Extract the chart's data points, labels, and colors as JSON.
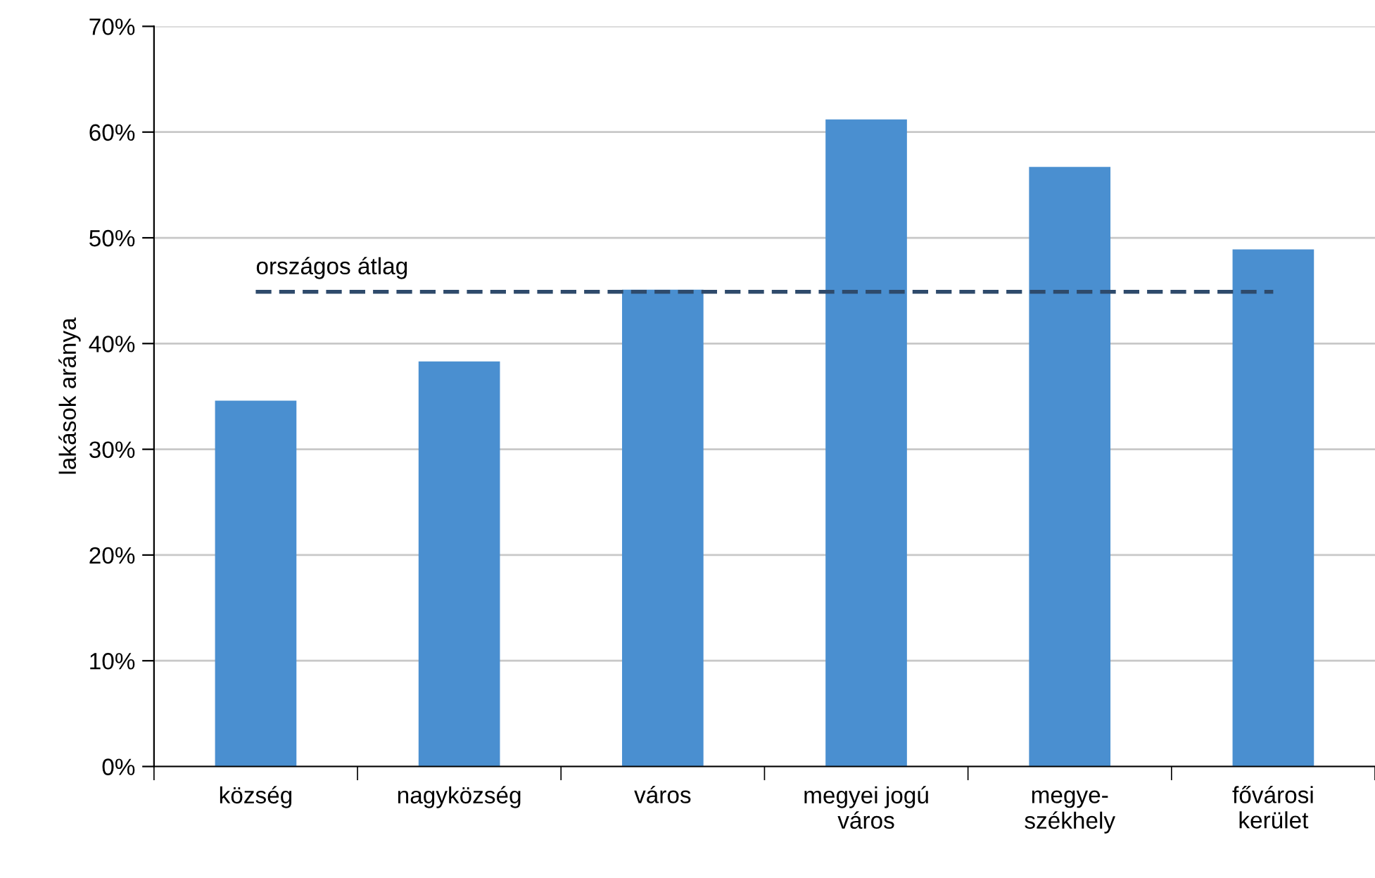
{
  "chart_data": {
    "type": "bar",
    "ylabel": "lakások aránya",
    "categories": [
      "község",
      "nagyközség",
      "város",
      "megyei jogú\nváros",
      "megye-\nszékhely",
      "fővárosi\nkerület"
    ],
    "values": [
      34.6,
      38.3,
      45.1,
      61.2,
      56.7,
      48.9
    ],
    "color": "#4a8fd0",
    "ylim": [
      0,
      70
    ],
    "yticks": [
      {
        "value": 0,
        "label": "0%"
      },
      {
        "value": 10,
        "label": "10%"
      },
      {
        "value": 20,
        "label": "20%"
      },
      {
        "value": 30,
        "label": "30%"
      },
      {
        "value": 40,
        "label": "40%"
      },
      {
        "value": 50,
        "label": "50%"
      },
      {
        "value": 60,
        "label": "60%"
      },
      {
        "value": 70,
        "label": "70%"
      }
    ],
    "grid": "y",
    "ref_lines": [
      {
        "axis": "y",
        "value": 44.9,
        "label": "országos átlag",
        "color": "#2e4a6b",
        "line_style": "dashed"
      }
    ]
  }
}
